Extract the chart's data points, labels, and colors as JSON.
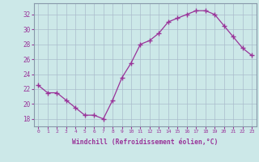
{
  "x": [
    0,
    1,
    2,
    3,
    4,
    5,
    6,
    7,
    8,
    9,
    10,
    11,
    12,
    13,
    14,
    15,
    16,
    17,
    18,
    19,
    20,
    21,
    22,
    23
  ],
  "y": [
    22.5,
    21.5,
    21.5,
    20.5,
    19.5,
    18.5,
    18.5,
    18.0,
    20.5,
    23.5,
    25.5,
    28.0,
    28.5,
    29.5,
    31.0,
    31.5,
    32.0,
    32.5,
    32.5,
    32.0,
    30.5,
    29.0,
    27.5,
    26.5
  ],
  "ylim": [
    17.0,
    33.5
  ],
  "yticks": [
    18,
    20,
    22,
    24,
    26,
    28,
    30,
    32
  ],
  "xlim": [
    -0.5,
    23.5
  ],
  "xticks": [
    0,
    1,
    2,
    3,
    4,
    5,
    6,
    7,
    8,
    9,
    10,
    11,
    12,
    13,
    14,
    15,
    16,
    17,
    18,
    19,
    20,
    21,
    22,
    23
  ],
  "xlabel": "Windchill (Refroidissement éolien,°C)",
  "line_color": "#993399",
  "marker": "+",
  "bg_color": "#cce8e8",
  "grid_color": "#aabccc",
  "xlabel_color": "#993399",
  "tick_color": "#993399",
  "spine_color": "#8899aa"
}
